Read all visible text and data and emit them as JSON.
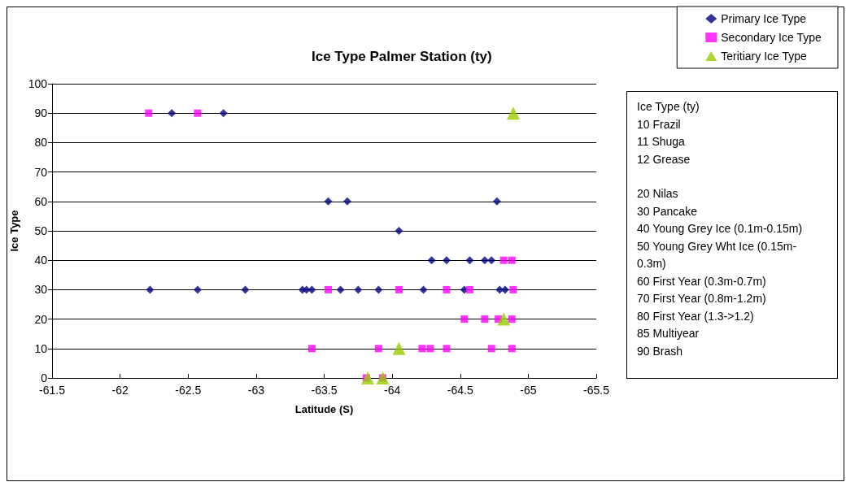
{
  "chart_data": {
    "type": "scatter",
    "title": "Ice Type Palmer Station (ty)",
    "xlabel": "Latitude (S)",
    "ylabel": "Ice Type",
    "xlim": [
      -61.5,
      -65.5
    ],
    "xticks": [
      -61.5,
      -62,
      -62.5,
      -63,
      -63.5,
      -64,
      -64.5,
      -65,
      -65.5
    ],
    "ylim": [
      0,
      100
    ],
    "yticks": [
      0,
      10,
      20,
      30,
      40,
      50,
      60,
      70,
      80,
      90,
      100
    ],
    "grid": "y",
    "legend": "top right",
    "series": [
      {
        "name": "Primary Ice Type",
        "color": "#000080",
        "marker": "diamond",
        "x": [
          -62.38,
          -62.76,
          -63.53,
          -63.67,
          -64.77,
          -64.05,
          -64.29,
          -64.4,
          -64.57,
          -64.68,
          -64.73,
          -62.22,
          -62.57,
          -62.92,
          -63.34,
          -63.37,
          -63.41,
          -63.62,
          -63.75,
          -63.9,
          -64.23,
          -64.53,
          -64.79,
          -64.83
        ],
        "values": [
          90,
          90,
          60,
          60,
          60,
          50,
          40,
          40,
          40,
          40,
          40,
          30,
          30,
          30,
          30,
          30,
          30,
          30,
          30,
          30,
          30,
          30,
          30,
          30
        ]
      },
      {
        "name": "Secondary Ice Type",
        "color": "#ff00ff",
        "marker": "square",
        "x": [
          -62.21,
          -62.57,
          -64.82,
          -64.88,
          -63.53,
          -64.05,
          -64.4,
          -64.57,
          -64.89,
          -64.53,
          -64.68,
          -64.78,
          -64.88,
          -63.41,
          -63.9,
          -64.22,
          -64.28,
          -64.4,
          -64.73,
          -64.88,
          -63.81,
          -63.93
        ],
        "values": [
          90,
          90,
          40,
          40,
          30,
          30,
          30,
          30,
          30,
          20,
          20,
          20,
          20,
          10,
          10,
          10,
          10,
          10,
          10,
          10,
          0,
          0
        ]
      },
      {
        "name": "Teritiary Ice Type",
        "color": "#99cc00",
        "marker": "triangle",
        "x": [
          -64.89,
          -64.82,
          -64.05,
          -63.82,
          -63.93
        ],
        "values": [
          90,
          20,
          10,
          0,
          0
        ]
      }
    ],
    "annotations": [
      "Ice Type (ty)",
      "10 Frazil",
      "11 Shuga",
      "12 Grease",
      "20 Nilas",
      "30 Pancake",
      "40 Young Grey Ice (0.1m-0.15m)",
      "50 Young Grey Wht Ice (0.15m-0.3m)",
      "60 First Year (0.3m-0.7m)",
      "70 First Year (0.8m-1.2m)",
      "80 First Year (1.3->1.2)",
      "85 Multiyear",
      "90 Brash"
    ]
  }
}
